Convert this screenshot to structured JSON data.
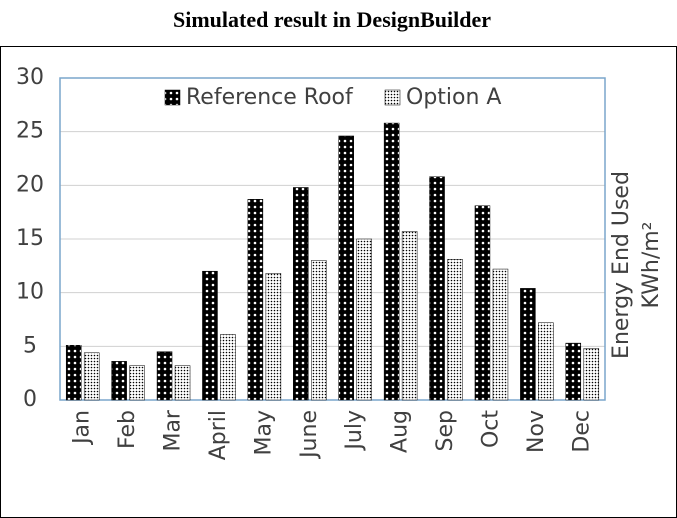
{
  "chart_data": {
    "type": "bar",
    "title": "Simulated result in DesignBuilder",
    "y_label": [
      "Energy End Used",
      "KWh/m²"
    ],
    "categories": [
      "Jan",
      "Feb",
      "Mar",
      "April",
      "May",
      "June",
      "July",
      "Aug",
      "Sep",
      "Oct",
      "Nov",
      "Dec"
    ],
    "series": [
      {
        "name": "Reference Roof",
        "color": "#000000",
        "values": [
          5.1,
          3.6,
          4.5,
          12.0,
          18.7,
          19.8,
          24.6,
          25.8,
          20.8,
          18.1,
          10.4,
          5.3
        ]
      },
      {
        "name": "Option A",
        "color": "#ffffff",
        "values": [
          4.4,
          3.2,
          3.2,
          6.1,
          11.8,
          13.0,
          15.0,
          15.7,
          13.1,
          12.2,
          7.2,
          4.8
        ]
      }
    ],
    "ylim": [
      0,
      30
    ],
    "yticks": [
      0,
      5,
      10,
      15,
      20,
      25,
      30
    ],
    "grid": true,
    "legend": "top"
  }
}
